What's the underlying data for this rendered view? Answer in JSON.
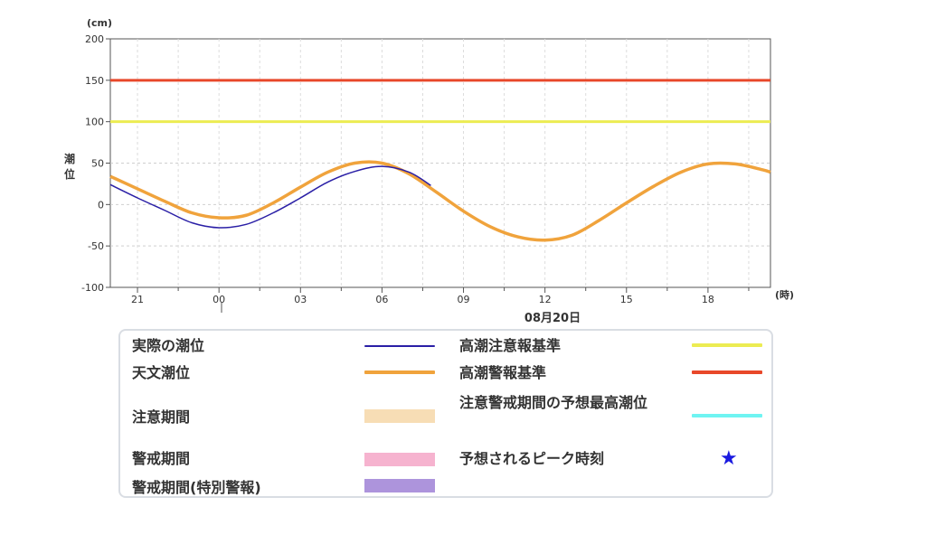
{
  "chart_data": {
    "type": "line",
    "y_unit": "(cm)",
    "ylabel": "潮位",
    "x_unit": "(時)",
    "date_label": "08月20日",
    "ylim": [
      -100,
      200
    ],
    "y_ticks": [
      200,
      150,
      100,
      50,
      0,
      -50,
      -100
    ],
    "x_ticks": [
      {
        "hour": -3,
        "label": "21"
      },
      {
        "hour": 0,
        "label": "00"
      },
      {
        "hour": 3,
        "label": "03"
      },
      {
        "hour": 6,
        "label": "06"
      },
      {
        "hour": 9,
        "label": "09"
      },
      {
        "hour": 12,
        "label": "12"
      },
      {
        "hour": 15,
        "label": "15"
      },
      {
        "hour": 18,
        "label": "18"
      }
    ],
    "xlim": [
      -4,
      20.3
    ],
    "grid": true,
    "reference_lines": [
      {
        "name": "高潮警報基準",
        "value": 150,
        "color": "#e8482a"
      },
      {
        "name": "高潮注意報基準",
        "value": 100,
        "color": "#ecec52"
      }
    ],
    "series": [
      {
        "name": "天文潮位",
        "color": "#f0a33c",
        "x": [
          -4,
          -3,
          -2,
          -1,
          0,
          1,
          2,
          3,
          4,
          5,
          6,
          7,
          8,
          9,
          10,
          11,
          12,
          13,
          14,
          15,
          16,
          17,
          18,
          19,
          20,
          20.3
        ],
        "y": [
          34,
          19,
          4,
          -10,
          -16,
          -13,
          2,
          21,
          39,
          50,
          50,
          37,
          15,
          -8,
          -27,
          -39,
          -43,
          -37,
          -19,
          2,
          22,
          39,
          49,
          49,
          42,
          39
        ]
      },
      {
        "name": "実際の潮位",
        "color": "#2a1fa6",
        "x": [
          -4,
          -3,
          -2,
          -1,
          0,
          1,
          2,
          3,
          4,
          5,
          6,
          7,
          7.8
        ],
        "y": [
          24,
          8,
          -7,
          -22,
          -28,
          -24,
          -10,
          8,
          27,
          40,
          46,
          39,
          23
        ]
      }
    ]
  },
  "legend": {
    "items": [
      {
        "label": "実際の潮位",
        "kind": "thin-line",
        "color": "#2a1fa6"
      },
      {
        "label": "天文潮位",
        "kind": "line",
        "color": "#f0a33c"
      },
      {
        "label": "注意期間",
        "kind": "patch",
        "color": "#f7ddb5"
      },
      {
        "label": "警戒期間",
        "kind": "patch",
        "color": "#f6b3cf"
      },
      {
        "label": "警戒期間(特別警報)",
        "kind": "patch",
        "color": "#ad94dc"
      },
      {
        "label": "高潮注意報基準",
        "kind": "line",
        "color": "#ecec52"
      },
      {
        "label": "高潮警報基準",
        "kind": "line",
        "color": "#e8482a"
      },
      {
        "label": "注意警戒期間の予想最高潮位",
        "kind": "line",
        "color": "#6ff4f2"
      },
      {
        "label": "予想されるピーク時刻",
        "kind": "star",
        "color": "#1a1ae0",
        "glyph": "★"
      }
    ]
  }
}
